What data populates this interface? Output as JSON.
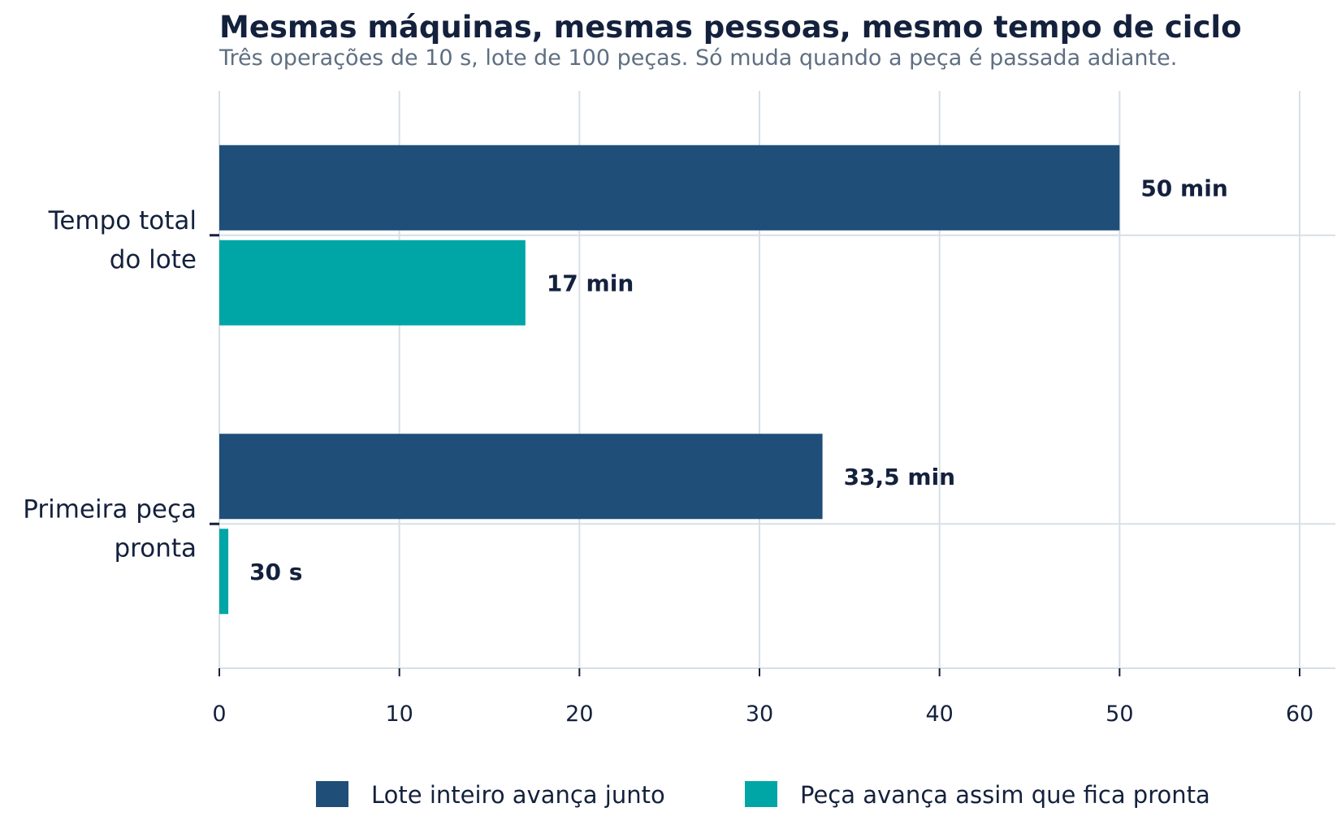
{
  "chart_data": {
    "type": "bar",
    "orientation": "horizontal",
    "title": "Mesmas máquinas, mesmas pessoas, mesmo tempo de ciclo",
    "subtitle": "Três operações de 10 s, lote de 100 peças. Só muda quando a peça é passada adiante.",
    "categories": [
      {
        "lines": [
          "Tempo total",
          "do lote"
        ]
      },
      {
        "lines": [
          "Primeira peça",
          "pronta"
        ]
      }
    ],
    "series": [
      {
        "name": "Lote inteiro avança junto",
        "color": "#1f4e79",
        "values": [
          50,
          33.5
        ],
        "labels": [
          "50 min",
          "33,5 min"
        ]
      },
      {
        "name": "Peça avança assim que fica pronta",
        "color": "#00a6a6",
        "values": [
          17,
          0.5
        ],
        "labels": [
          "17 min",
          "30 s"
        ]
      }
    ],
    "xlim": [
      0,
      60
    ],
    "xticks": [
      0,
      10,
      20,
      30,
      40,
      50,
      60
    ],
    "grid": true,
    "legend_position": "bottom"
  }
}
